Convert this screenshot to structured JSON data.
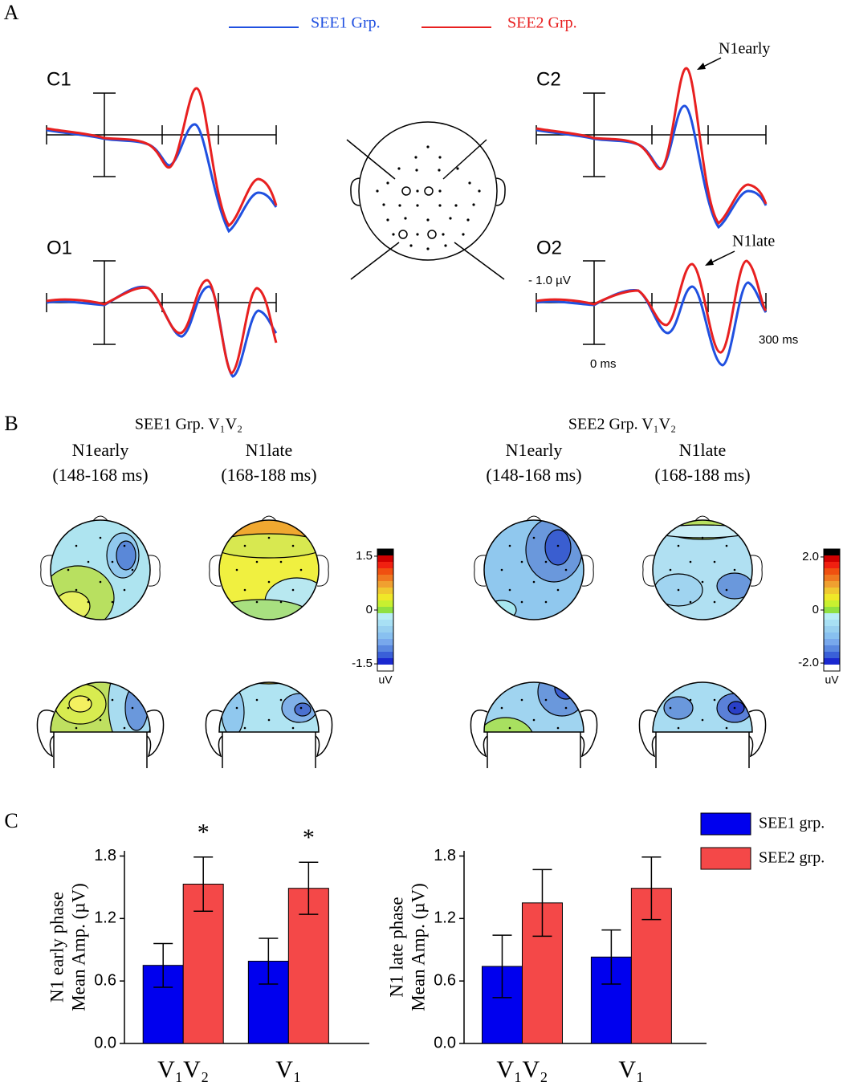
{
  "panels": {
    "a": "A",
    "b": "B",
    "c": "C"
  },
  "erp": {
    "legend": [
      {
        "name": "SEE1 Grp.",
        "color": "#2050e0"
      },
      {
        "name": "SEE2 Grp.",
        "color": "#e82020"
      }
    ],
    "channels": [
      "C1",
      "C2",
      "O1",
      "O2"
    ],
    "annotations": [
      "N1early",
      "N1late"
    ],
    "scale": {
      "amplitude": "- 1.0 µV",
      "onset": "0 ms",
      "end": "300 ms"
    }
  },
  "topomaps": [
    {
      "title": "SEE1 Grp. V₁V₂",
      "windows": [
        {
          "name": "N1early",
          "range": "(148-168 ms)"
        },
        {
          "name": "N1late",
          "range": "(168-188 ms)"
        }
      ],
      "colorbar": {
        "lim": [
          -1.7,
          1.7
        ],
        "ticks": [
          1.5,
          0,
          -1.5
        ],
        "unit": "uV"
      }
    },
    {
      "title": "SEE2 Grp. V₁V₂",
      "windows": [
        {
          "name": "N1early",
          "range": "(148-168 ms)"
        },
        {
          "name": "N1late",
          "range": "(168-188 ms)"
        }
      ],
      "colorbar": {
        "lim": [
          -2.3,
          2.3
        ],
        "ticks": [
          {
            "value": 2,
            "label": "2.0"
          },
          0,
          {
            "value": -2,
            "label": "-2.0"
          }
        ],
        "unit": "uV"
      }
    }
  ],
  "chart_data": [
    {
      "type": "bar",
      "ylabel": [
        "N1 early phase",
        "Mean Amp. (µV)"
      ],
      "categories": [
        "V₁V₂",
        "V₁"
      ],
      "series": [
        {
          "name": "SEE1 grp.",
          "color": "#0000ee",
          "values": [
            0.75,
            0.79
          ],
          "errors": [
            0.21,
            0.22
          ]
        },
        {
          "name": "SEE2 grp.",
          "color": "#f44848",
          "values": [
            1.53,
            1.49
          ],
          "errors": [
            0.26,
            0.25
          ]
        }
      ],
      "annotations": [
        "*",
        "*"
      ],
      "legend": "right",
      "ylim": [
        0,
        1.85
      ],
      "yticks": [
        {
          "value": 0,
          "label": "0.0"
        },
        0.6,
        1.2,
        1.8
      ]
    },
    {
      "type": "bar",
      "ylabel": [
        "N1 late phase",
        "Mean Amp. (µV)"
      ],
      "categories": [
        "V₁V₂",
        "V₁"
      ],
      "series": [
        {
          "color": "#0000ee",
          "values": [
            0.74,
            0.83
          ],
          "errors": [
            0.3,
            0.26
          ]
        },
        {
          "color": "#f44848",
          "values": [
            1.35,
            1.49
          ],
          "errors": [
            0.32,
            0.3
          ]
        }
      ],
      "ylim": [
        0,
        1.85
      ],
      "yticks": [
        {
          "value": 0,
          "label": "0.0"
        },
        0.6,
        1.2,
        1.8
      ]
    }
  ]
}
